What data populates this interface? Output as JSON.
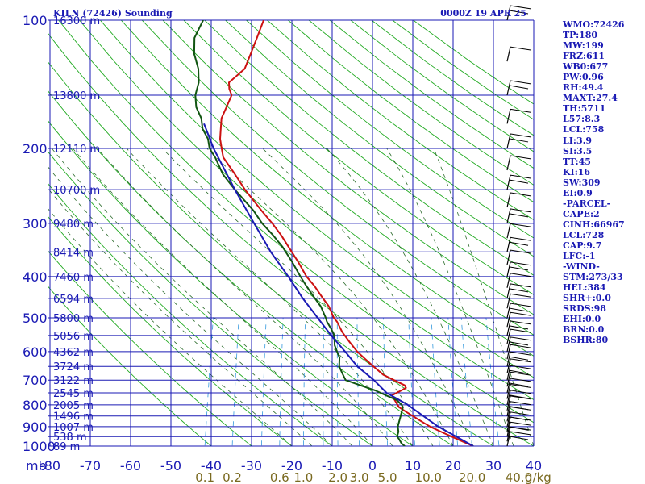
{
  "header": {
    "station": "KILN (72426) Sounding",
    "time": "0000Z 19 APR 25"
  },
  "pressure_label_unit": "mb",
  "mixing_unit": "g/kg",
  "indices": [
    "WMO:72426",
    "TP:180",
    "MW:199",
    "FRZ:611",
    "WB0:677",
    "PW:0.96",
    "RH:49.4",
    "MAXT:27.4",
    "TH:5711",
    "L57:8.3",
    "LCL:758",
    "LI:3.9",
    "SI:3.5",
    "TT:45",
    "KI:16",
    "SW:309",
    "EI:0.9",
    "-PARCEL-",
    "CAPE:2",
    "CINH:66967",
    "LCL:728",
    "CAP:9.7",
    "LFC:-1",
    "-WIND-",
    "STM:273/33",
    "HEL:384",
    "SHR+:0.0",
    "SRDS:98",
    "EHI:0.0",
    "BRN:0.0",
    "BSHR:80"
  ],
  "colors": {
    "grid": "#1a1ab4",
    "dry_adiabat": "#22aa22",
    "moist_adiabat": "#2a6a2a",
    "mixing_ratio": "#3399dd",
    "temperature": "#cc1111",
    "dewpoint": "#115511",
    "parcel": "#1a1ab4",
    "wind": "#000000"
  },
  "chart_data": {
    "type": "line",
    "title": "KILN (72426) Sounding",
    "subtitle": "0000Z 19 APR 25",
    "xlabel": "",
    "ylabel": "mb",
    "xlim": [
      -80,
      40
    ],
    "ylim": [
      1000,
      100
    ],
    "yscale": "log",
    "x_ticks": [
      -80,
      -70,
      -60,
      -50,
      -40,
      -30,
      -20,
      -10,
      0,
      10,
      20,
      30,
      40
    ],
    "x_tick_labels": [
      "-80",
      "-70",
      "-60",
      "-50",
      "-40",
      "-30",
      "-20",
      "-10",
      "0",
      "10",
      "20",
      "30",
      "40"
    ],
    "pressure_ticks": [
      100,
      200,
      300,
      400,
      500,
      600,
      700,
      800,
      900,
      1000
    ],
    "height_labels": [
      {
        "p": 100,
        "label": "16300 m"
      },
      {
        "p": 150,
        "label": "13800 m"
      },
      {
        "p": 200,
        "label": "12110 m"
      },
      {
        "p": 250,
        "label": "10700 m"
      },
      {
        "p": 300,
        "label": "9480 m"
      },
      {
        "p": 350,
        "label": "8414 m"
      },
      {
        "p": 400,
        "label": "7460 m"
      },
      {
        "p": 450,
        "label": "6594 m"
      },
      {
        "p": 500,
        "label": "5800 m"
      },
      {
        "p": 550,
        "label": "5056 m"
      },
      {
        "p": 600,
        "label": "4362 m"
      },
      {
        "p": 650,
        "label": "3724 m"
      },
      {
        "p": 700,
        "label": "3122 m"
      },
      {
        "p": 750,
        "label": "2545 m"
      },
      {
        "p": 800,
        "label": "2005 m"
      },
      {
        "p": 850,
        "label": "1496 m"
      },
      {
        "p": 900,
        "label": "1007 m"
      },
      {
        "p": 950,
        "label": "538 m"
      },
      {
        "p": 1000,
        "label": "89 m"
      }
    ],
    "mixing_ratio_labels": [
      {
        "value": 0.1,
        "label": "0.1"
      },
      {
        "value": 0.2,
        "label": "0.2"
      },
      {
        "value": 0.6,
        "label": "0.6"
      },
      {
        "value": 1.0,
        "label": "1.0"
      },
      {
        "value": 2.0,
        "label": "2.0"
      },
      {
        "value": 3.0,
        "label": "3.0"
      },
      {
        "value": 5.0,
        "label": "5.0"
      },
      {
        "value": 10.0,
        "label": "10.0"
      },
      {
        "value": 20.0,
        "label": "20.0"
      },
      {
        "value": 40.0,
        "label": "40.0"
      }
    ],
    "series": [
      {
        "key": "temperature",
        "points": [
          [
            1000,
            25
          ],
          [
            975,
            22
          ],
          [
            950,
            19
          ],
          [
            925,
            16
          ],
          [
            900,
            13
          ],
          [
            880,
            11
          ],
          [
            860,
            9
          ],
          [
            850,
            8
          ],
          [
            830,
            6
          ],
          [
            810,
            4
          ],
          [
            790,
            3
          ],
          [
            770,
            2
          ],
          [
            760,
            1.5
          ],
          [
            750,
            2.5
          ],
          [
            740,
            3.5
          ],
          [
            730,
            4.5
          ],
          [
            720,
            4
          ],
          [
            700,
            1
          ],
          [
            680,
            -2
          ],
          [
            650,
            -5
          ],
          [
            620,
            -8
          ],
          [
            600,
            -10
          ],
          [
            570,
            -12.5
          ],
          [
            540,
            -15
          ],
          [
            510,
            -17
          ],
          [
            500,
            -18
          ],
          [
            470,
            -20
          ],
          [
            450,
            -22
          ],
          [
            420,
            -25
          ],
          [
            400,
            -27.5
          ],
          [
            370,
            -30.5
          ],
          [
            340,
            -34
          ],
          [
            320,
            -36.5
          ],
          [
            300,
            -39.5
          ],
          [
            280,
            -43
          ],
          [
            250,
            -48.5
          ],
          [
            230,
            -52
          ],
          [
            210,
            -56
          ],
          [
            200,
            -57
          ],
          [
            190,
            -58
          ],
          [
            180,
            -58.5
          ],
          [
            170,
            -59
          ],
          [
            160,
            -58.5
          ],
          [
            150,
            -58
          ],
          [
            145,
            -59
          ],
          [
            140,
            -59.5
          ],
          [
            135,
            -58
          ],
          [
            130,
            -56.5
          ],
          [
            120,
            -56
          ],
          [
            110,
            -55.5
          ],
          [
            100,
            -55
          ]
        ]
      },
      {
        "key": "dewpoint",
        "points": [
          [
            1000,
            8
          ],
          [
            985,
            7
          ],
          [
            960,
            6
          ],
          [
            950,
            5.5
          ],
          [
            925,
            5.5
          ],
          [
            900,
            5
          ],
          [
            875,
            5
          ],
          [
            850,
            5
          ],
          [
            830,
            5
          ],
          [
            810,
            5
          ],
          [
            800,
            4.5
          ],
          [
            780,
            3
          ],
          [
            760,
            0
          ],
          [
            740,
            -3
          ],
          [
            720,
            -7
          ],
          [
            700,
            -11
          ],
          [
            680,
            -12
          ],
          [
            650,
            -13.5
          ],
          [
            620,
            -14
          ],
          [
            600,
            -15
          ],
          [
            580,
            -16
          ],
          [
            560,
            -16.5
          ],
          [
            545,
            -17
          ],
          [
            530,
            -18
          ],
          [
            510,
            -19.5
          ],
          [
            500,
            -20
          ],
          [
            470,
            -22
          ],
          [
            450,
            -24
          ],
          [
            420,
            -27
          ],
          [
            400,
            -29
          ],
          [
            370,
            -32
          ],
          [
            340,
            -35.5
          ],
          [
            320,
            -38.5
          ],
          [
            300,
            -42
          ],
          [
            280,
            -45
          ],
          [
            250,
            -51
          ],
          [
            230,
            -55
          ],
          [
            210,
            -58
          ],
          [
            200,
            -60
          ],
          [
            190,
            -61
          ],
          [
            180,
            -63
          ],
          [
            170,
            -64
          ],
          [
            160,
            -66
          ],
          [
            150,
            -67
          ],
          [
            140,
            -67
          ],
          [
            130,
            -68
          ],
          [
            120,
            -70
          ],
          [
            110,
            -71
          ],
          [
            100,
            -70
          ]
        ]
      },
      {
        "key": "parcel",
        "points": [
          [
            1000,
            25
          ],
          [
            900,
            15
          ],
          [
            800,
            6
          ],
          [
            750,
            0
          ],
          [
            700,
            -4
          ],
          [
            650,
            -9
          ],
          [
            600,
            -13
          ],
          [
            550,
            -17.5
          ],
          [
            500,
            -22
          ],
          [
            450,
            -27
          ],
          [
            400,
            -32
          ],
          [
            350,
            -38
          ],
          [
            300,
            -44
          ],
          [
            250,
            -51
          ],
          [
            200,
            -59
          ],
          [
            175,
            -63
          ]
        ]
      }
    ]
  }
}
